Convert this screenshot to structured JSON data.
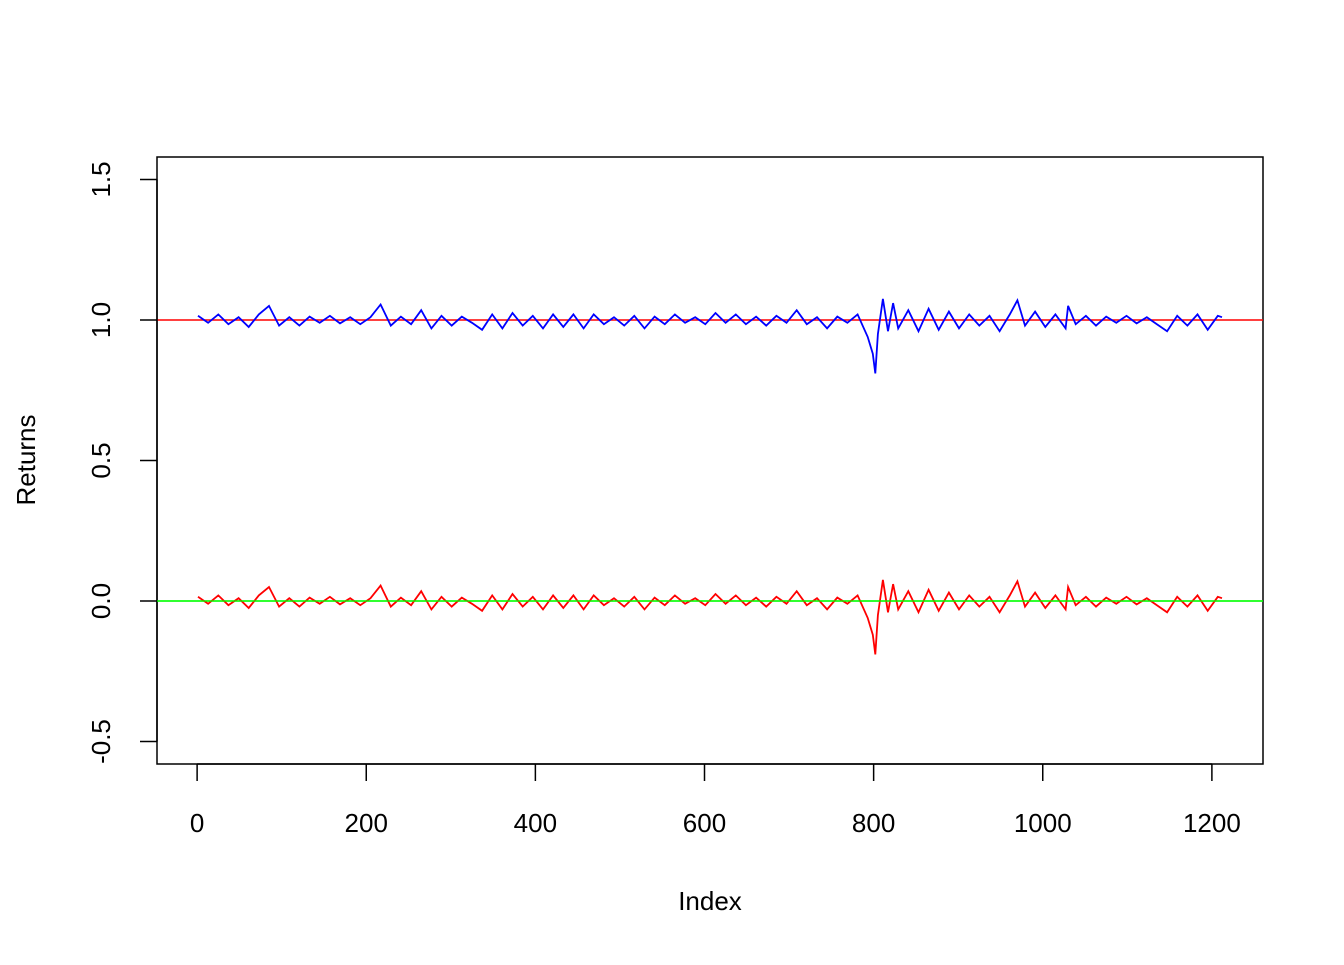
{
  "chart_data": {
    "type": "line",
    "title": "",
    "xlabel": "Index",
    "ylabel": "Returns",
    "xlim": [
      1,
      1212
    ],
    "ylim": [
      -0.55,
      1.55
    ],
    "x_ticks": [
      0,
      200,
      400,
      600,
      800,
      1000,
      1200
    ],
    "x_tick_labels": [
      "0",
      "200",
      "400",
      "600",
      "800",
      "1000",
      "1200"
    ],
    "y_ticks": [
      -0.5,
      0.0,
      0.5,
      1.0,
      1.5
    ],
    "y_tick_labels": [
      "-0.5",
      "0.0",
      "0.5",
      "1.0",
      "1.5"
    ],
    "grid": false,
    "legend": "none",
    "x": [
      1,
      13,
      25,
      37,
      49,
      61,
      73,
      85,
      97,
      109,
      121,
      133,
      145,
      157,
      169,
      181,
      193,
      205,
      217,
      229,
      241,
      253,
      265,
      277,
      289,
      301,
      313,
      325,
      337,
      349,
      361,
      373,
      385,
      397,
      409,
      421,
      433,
      445,
      457,
      469,
      481,
      493,
      505,
      517,
      529,
      541,
      553,
      565,
      577,
      589,
      601,
      613,
      625,
      637,
      649,
      661,
      673,
      685,
      697,
      709,
      721,
      733,
      745,
      757,
      769,
      781,
      793,
      799,
      802,
      805,
      811,
      817,
      823,
      829,
      841,
      853,
      865,
      877,
      889,
      901,
      913,
      925,
      937,
      949,
      961,
      970,
      979,
      991,
      1003,
      1015,
      1027,
      1030,
      1039,
      1051,
      1063,
      1075,
      1087,
      1099,
      1111,
      1123,
      1135,
      1147,
      1159,
      1171,
      1183,
      1195,
      1207,
      1212
    ],
    "series": [
      {
        "color": "#0000FF",
        "values": [
          1.015,
          0.99,
          1.02,
          0.985,
          1.01,
          0.975,
          1.02,
          1.05,
          0.98,
          1.01,
          0.98,
          1.012,
          0.99,
          1.015,
          0.988,
          1.01,
          0.985,
          1.01,
          1.055,
          0.98,
          1.012,
          0.985,
          1.035,
          0.97,
          1.015,
          0.98,
          1.012,
          0.99,
          0.965,
          1.02,
          0.97,
          1.025,
          0.98,
          1.015,
          0.97,
          1.02,
          0.975,
          1.02,
          0.97,
          1.02,
          0.985,
          1.01,
          0.98,
          1.015,
          0.97,
          1.012,
          0.985,
          1.02,
          0.99,
          1.01,
          0.985,
          1.025,
          0.99,
          1.02,
          0.985,
          1.012,
          0.98,
          1.015,
          0.99,
          1.035,
          0.985,
          1.01,
          0.97,
          1.012,
          0.99,
          1.02,
          0.94,
          0.88,
          0.81,
          0.95,
          1.075,
          0.96,
          1.06,
          0.97,
          1.035,
          0.96,
          1.04,
          0.965,
          1.03,
          0.97,
          1.02,
          0.98,
          1.015,
          0.96,
          1.02,
          1.07,
          0.98,
          1.03,
          0.975,
          1.02,
          0.97,
          1.05,
          0.985,
          1.015,
          0.98,
          1.012,
          0.99,
          1.015,
          0.988,
          1.01,
          0.985,
          0.96,
          1.015,
          0.98,
          1.02,
          0.965,
          1.015,
          1.01
        ]
      },
      {
        "color": "#FF0000",
        "values": [
          0.015,
          -0.01,
          0.02,
          -0.015,
          0.01,
          -0.025,
          0.02,
          0.05,
          -0.02,
          0.01,
          -0.02,
          0.012,
          -0.01,
          0.015,
          -0.012,
          0.01,
          -0.015,
          0.01,
          0.055,
          -0.02,
          0.012,
          -0.015,
          0.035,
          -0.03,
          0.015,
          -0.02,
          0.012,
          -0.01,
          -0.035,
          0.02,
          -0.03,
          0.025,
          -0.02,
          0.015,
          -0.03,
          0.02,
          -0.025,
          0.02,
          -0.03,
          0.02,
          -0.015,
          0.01,
          -0.02,
          0.015,
          -0.03,
          0.012,
          -0.015,
          0.02,
          -0.01,
          0.01,
          -0.015,
          0.025,
          -0.01,
          0.02,
          -0.015,
          0.012,
          -0.02,
          0.015,
          -0.01,
          0.035,
          -0.015,
          0.01,
          -0.03,
          0.012,
          -0.01,
          0.02,
          -0.06,
          -0.12,
          -0.19,
          -0.05,
          0.075,
          -0.04,
          0.06,
          -0.03,
          0.035,
          -0.04,
          0.04,
          -0.035,
          0.03,
          -0.03,
          0.02,
          -0.02,
          0.015,
          -0.04,
          0.02,
          0.07,
          -0.02,
          0.03,
          -0.025,
          0.02,
          -0.03,
          0.05,
          -0.015,
          0.015,
          -0.02,
          0.012,
          -0.01,
          0.015,
          -0.012,
          0.01,
          -0.015,
          -0.04,
          0.015,
          -0.02,
          0.02,
          -0.035,
          0.015,
          0.01
        ]
      }
    ],
    "hlines": [
      {
        "y": 1.0,
        "color": "#FF0000"
      },
      {
        "y": 0.0,
        "color": "#00FF00"
      }
    ]
  }
}
